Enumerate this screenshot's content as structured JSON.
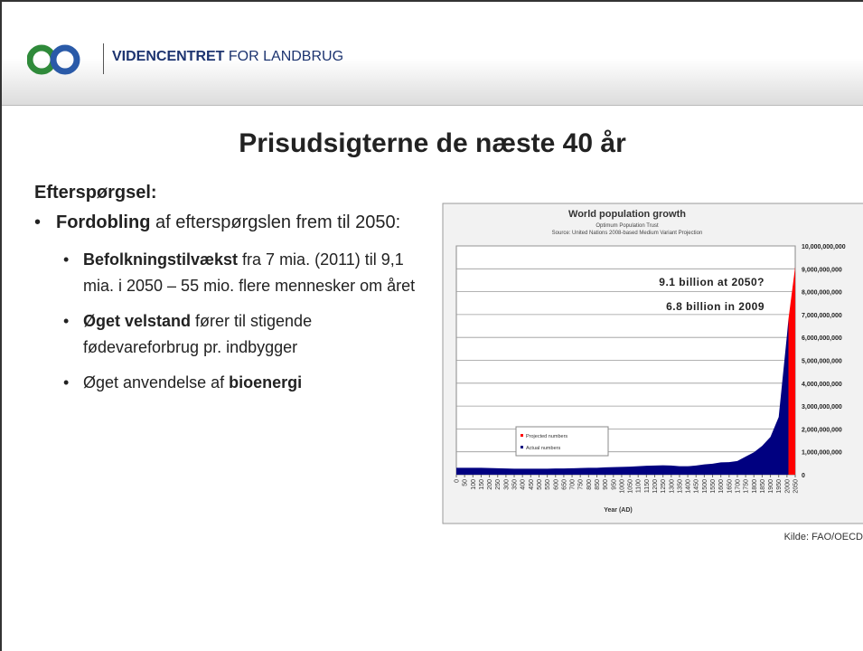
{
  "header": {
    "org_bold": "VIDENCENTRET",
    "org_rest": "FOR LANDBRUG"
  },
  "title": "Prisudsigterne de næste 40 år",
  "section": "Efterspørgsel:",
  "bullets": [
    {
      "runs": [
        {
          "text": "Fordobling",
          "bold": true
        },
        {
          "text": " af efterspørgslen frem til 2050:",
          "bold": false
        }
      ],
      "sub": [
        {
          "runs": [
            {
              "text": "Befolkningstilvækst",
              "bold": true
            },
            {
              "text": " fra 7 mia. (2011) til 9,1 mia. i 2050 – 55 mio. flere mennesker om året",
              "bold": false
            }
          ]
        },
        {
          "runs": [
            {
              "text": "Øget velstand",
              "bold": true
            },
            {
              "text": " fører til stigende fødevareforbrug pr. indbygger",
              "bold": false
            }
          ]
        },
        {
          "runs": [
            {
              "text": "Øget anvendelse af ",
              "bold": false
            },
            {
              "text": "bioenergi",
              "bold": true
            }
          ]
        }
      ]
    }
  ],
  "chart_data": {
    "type": "area",
    "title": "World population growth",
    "subtitle": "Optimum Population Trust",
    "source": "Source: United Nations 2008-based Medium Variant Projection",
    "xlabel": "Year (AD)",
    "annotations": [
      "9.1 billion at 2050?",
      "6.8 billion in 2009"
    ],
    "xlim": [
      0,
      2050
    ],
    "xticks": [
      0,
      50,
      100,
      150,
      200,
      250,
      300,
      350,
      400,
      450,
      500,
      550,
      600,
      650,
      700,
      750,
      800,
      850,
      900,
      950,
      1000,
      1050,
      1100,
      1150,
      1200,
      1250,
      1300,
      1350,
      1400,
      1450,
      1500,
      1550,
      1600,
      1650,
      1700,
      1750,
      1800,
      1850,
      1900,
      1950,
      2000,
      2050
    ],
    "ylim": [
      0,
      10000000000
    ],
    "yticks": [
      0,
      {
        "value": 1000000000,
        "label": "1,000,000,000"
      },
      {
        "value": 2000000000,
        "label": "2,000,000,000"
      },
      {
        "value": 3000000000,
        "label": "3,000,000,000"
      },
      {
        "value": 4000000000,
        "label": "4,000,000,000"
      },
      {
        "value": 5000000000,
        "label": "5,000,000,000"
      },
      {
        "value": 6000000000,
        "label": "6,000,000,000"
      },
      {
        "value": 7000000000,
        "label": "7,000,000,000"
      },
      {
        "value": 8000000000,
        "label": "8,000,000,000"
      },
      {
        "value": 9000000000,
        "label": "9,000,000,000"
      },
      {
        "value": 10000000000,
        "label": "10,000,000,000"
      }
    ],
    "grid": true,
    "series": [
      {
        "name": "Projected numbers",
        "color": "#ff0000",
        "x": [
          2009,
          2050
        ],
        "values": [
          6800000000,
          9100000000
        ]
      },
      {
        "name": "Actual numbers",
        "color": "#000080",
        "x": [
          0,
          50,
          100,
          150,
          200,
          250,
          300,
          350,
          400,
          450,
          500,
          550,
          600,
          650,
          700,
          750,
          800,
          850,
          900,
          950,
          1000,
          1050,
          1100,
          1150,
          1200,
          1250,
          1300,
          1350,
          1400,
          1450,
          1500,
          1550,
          1600,
          1650,
          1700,
          1750,
          1800,
          1850,
          1900,
          1950,
          2000,
          2009
        ],
        "values": [
          300000000,
          300000000,
          300000000,
          300000000,
          290000000,
          280000000,
          270000000,
          260000000,
          260000000,
          260000000,
          260000000,
          260000000,
          270000000,
          270000000,
          280000000,
          290000000,
          300000000,
          300000000,
          320000000,
          330000000,
          340000000,
          350000000,
          370000000,
          390000000,
          400000000,
          410000000,
          400000000,
          370000000,
          370000000,
          400000000,
          450000000,
          480000000,
          540000000,
          550000000,
          600000000,
          790000000,
          980000000,
          1260000000,
          1650000000,
          2520000000,
          6100000000,
          6800000000
        ]
      }
    ]
  },
  "source": "Kilde: FAO/OECD"
}
